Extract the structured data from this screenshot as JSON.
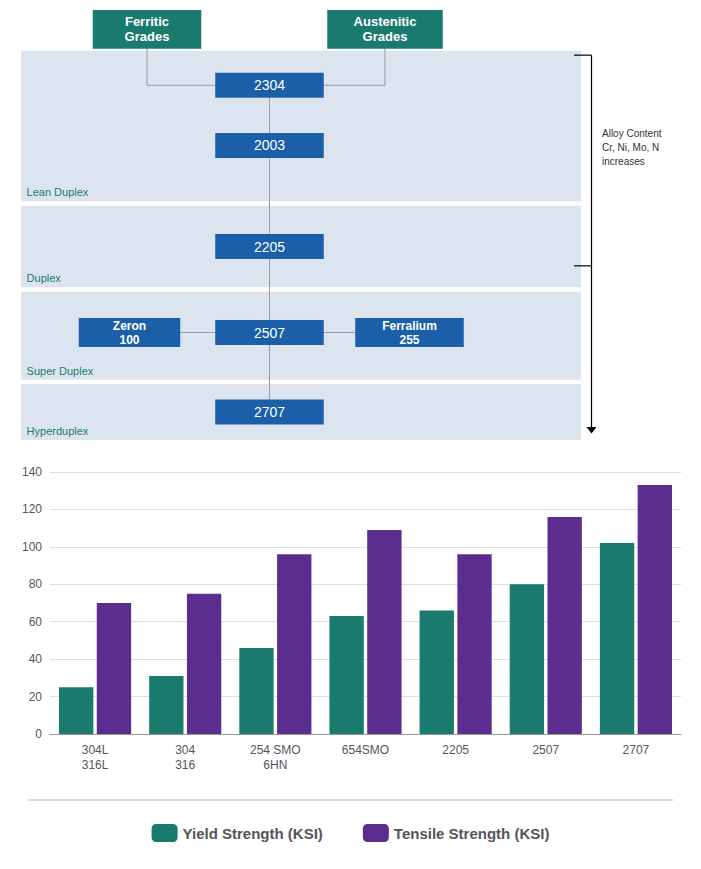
{
  "chart_data": {
    "type": "bar",
    "annotations": [
      "Ferritic\nGrades",
      "Austenitic\nGrades",
      "2304",
      "2003",
      "2205",
      "Zeron\n100",
      "2507",
      "Ferralium\n255",
      "2707",
      "Lean Duplex",
      "Duplex",
      "Super Duplex",
      "Hyperduplex",
      "Alloy Content\nCr, Ni, Mo, N\nincreases"
    ],
    "categories": [
      "304L\n316L",
      "304\n316",
      "254 SMO\n6HN",
      "654SMO",
      "2205",
      "2507",
      "2707"
    ],
    "series": [
      {
        "name": "Yield Strength (KSI)",
        "color": "#1a7a6e",
        "values": [
          25,
          31,
          46,
          63,
          66,
          80,
          102
        ]
      },
      {
        "name": "Tensile Strength (KSI)",
        "color": "#5b2d8e",
        "values": [
          70,
          75,
          96,
          109,
          96,
          116,
          133
        ]
      }
    ],
    "ylim": [
      0,
      140
    ],
    "yticks": [
      0,
      20,
      40,
      60,
      80,
      100,
      120,
      140
    ],
    "grid": true,
    "legend": "bottom"
  }
}
